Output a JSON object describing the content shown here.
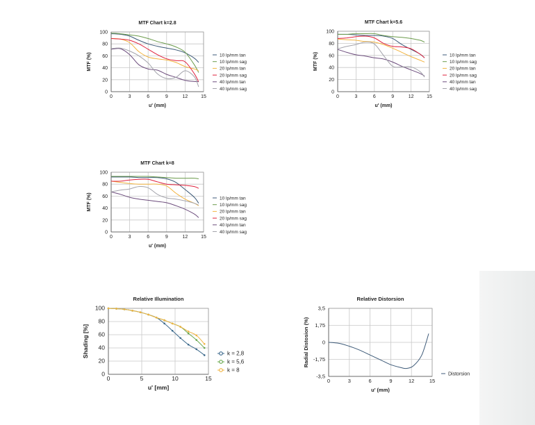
{
  "chart_data": [
    {
      "id": "mtf-k28",
      "type": "line",
      "title": "MTF Chart k=2.8",
      "xlabel": "u' (mm)",
      "ylabel": "MTF (%)",
      "xlim": [
        0,
        15
      ],
      "ylim": [
        0,
        100
      ],
      "xticks": [
        0,
        3,
        6,
        9,
        12,
        15
      ],
      "yticks": [
        0,
        20,
        40,
        60,
        80,
        100
      ],
      "grid": true,
      "legend": "right",
      "x": [
        0,
        1.5,
        3,
        4.5,
        6,
        7.5,
        9,
        10.5,
        12,
        13.5,
        14.2
      ],
      "series": [
        {
          "name": "10 lp/mm tan",
          "color": "#3d5a78",
          "values": [
            97,
            96,
            93,
            86,
            80,
            76,
            73,
            70,
            65,
            56,
            49
          ]
        },
        {
          "name": "10 lp/mm sag",
          "color": "#6b9b4b",
          "values": [
            98,
            97,
            95,
            93,
            89,
            84,
            80,
            75,
            66,
            45,
            32
          ]
        },
        {
          "name": "20 lp/mm tan",
          "color": "#f2b440",
          "values": [
            89,
            88,
            82,
            67,
            58,
            55,
            53,
            49,
            42,
            38,
            35
          ]
        },
        {
          "name": "20 lp/mm sag",
          "color": "#e0203c",
          "values": [
            89,
            88,
            86,
            80,
            71,
            62,
            55,
            52,
            50,
            30,
            16
          ]
        },
        {
          "name": "40 lp/mm tan",
          "color": "#6c4c7c",
          "values": [
            71,
            72,
            62,
            45,
            38,
            36,
            29,
            24,
            19,
            17,
            17
          ]
        },
        {
          "name": "40 lp/mm sag",
          "color": "#a3a3ab",
          "values": [
            72,
            73,
            68,
            60,
            48,
            30,
            22,
            24,
            35,
            25,
            8
          ]
        }
      ]
    },
    {
      "id": "mtf-k56",
      "type": "line",
      "title": "MTF Chart k=5.6",
      "xlabel": "u' (mm)",
      "ylabel": "MTF (%)",
      "xlim": [
        0,
        15
      ],
      "ylim": [
        0,
        100
      ],
      "xticks": [
        0,
        3,
        6,
        9,
        12,
        15
      ],
      "yticks": [
        0,
        20,
        40,
        60,
        80,
        100
      ],
      "grid": true,
      "legend": "right",
      "x": [
        0,
        1.5,
        3,
        4.5,
        6,
        7.5,
        9,
        10.5,
        12,
        13.5,
        14.2
      ],
      "series": [
        {
          "name": "10 lp/mm tan",
          "color": "#3d5a78",
          "values": [
            95,
            95,
            94,
            93,
            93,
            92,
            88,
            78,
            70,
            62,
            56
          ]
        },
        {
          "name": "10 lp/mm sag",
          "color": "#6b9b4b",
          "values": [
            95,
            95,
            96,
            96,
            96,
            93,
            91,
            90,
            88,
            85,
            82
          ]
        },
        {
          "name": "20 lp/mm tan",
          "color": "#f2b440",
          "values": [
            87,
            86,
            85,
            83,
            82,
            78,
            72,
            65,
            58,
            52,
            49
          ]
        },
        {
          "name": "20 lp/mm sag",
          "color": "#e0203c",
          "values": [
            88,
            89,
            91,
            92,
            89,
            80,
            75,
            74,
            71,
            62,
            56
          ]
        },
        {
          "name": "40 lp/mm tan",
          "color": "#6c4c7c",
          "values": [
            70,
            65,
            61,
            59,
            56,
            54,
            49,
            42,
            36,
            30,
            26
          ]
        },
        {
          "name": "40 lp/mm sag",
          "color": "#a3a3ab",
          "values": [
            71,
            75,
            78,
            82,
            79,
            60,
            42,
            41,
            41,
            33,
            24
          ]
        }
      ]
    },
    {
      "id": "mtf-k8",
      "type": "line",
      "title": "MTF Chart k=8",
      "xlabel": "u' (mm)",
      "ylabel": "MTF (%)",
      "xlim": [
        0,
        15
      ],
      "ylim": [
        0,
        100
      ],
      "xticks": [
        0,
        3,
        6,
        9,
        12,
        15
      ],
      "yticks": [
        0,
        20,
        40,
        60,
        80,
        100
      ],
      "grid": true,
      "legend": "right",
      "x": [
        0,
        1.5,
        3,
        4.5,
        6,
        7.5,
        9,
        10.5,
        12,
        13.5,
        14.2
      ],
      "series": [
        {
          "name": "10 lp/mm tan",
          "color": "#3d5a78",
          "values": [
            92,
            92,
            92,
            91,
            91,
            91,
            89,
            83,
            71,
            58,
            48
          ]
        },
        {
          "name": "10 lp/mm sag",
          "color": "#6b9b4b",
          "values": [
            93,
            93,
            93,
            93,
            93,
            92,
            91,
            90,
            90,
            90,
            89
          ]
        },
        {
          "name": "20 lp/mm tan",
          "color": "#f2b440",
          "values": [
            85,
            83,
            81,
            80,
            80,
            80,
            77,
            65,
            55,
            48,
            44
          ]
        },
        {
          "name": "20 lp/mm sag",
          "color": "#e0203c",
          "values": [
            85,
            85,
            87,
            88,
            88,
            84,
            80,
            79,
            78,
            76,
            73
          ]
        },
        {
          "name": "40 lp/mm tan",
          "color": "#6c4c7c",
          "values": [
            67,
            63,
            58,
            55,
            53,
            51,
            49,
            44,
            38,
            30,
            24
          ]
        },
        {
          "name": "40 lp/mm sag",
          "color": "#a3a3ab",
          "values": [
            67,
            70,
            72,
            76,
            74,
            63,
            57,
            55,
            52,
            48,
            45
          ]
        }
      ]
    },
    {
      "id": "relative-illumination",
      "type": "line",
      "title": "Relative Illumination",
      "xlabel": "u' [mm]",
      "ylabel": "Shading [%]",
      "xlim": [
        0,
        15
      ],
      "ylim": [
        0,
        100
      ],
      "xticks": [
        0,
        5,
        10,
        15
      ],
      "yticks": [
        0,
        20,
        40,
        60,
        80,
        100
      ],
      "grid": true,
      "legend": "right",
      "markers": true,
      "x": [
        0,
        1.2,
        2.4,
        3.6,
        4.8,
        6,
        7.2,
        8.4,
        9.6,
        10.8,
        12,
        13.2,
        14.4
      ],
      "series": [
        {
          "name": "k = 2,8",
          "color": "#3d6a8c",
          "values": [
            100,
            99.5,
            98.5,
            96.5,
            94,
            90.5,
            86,
            77,
            66,
            55,
            45,
            38,
            29
          ]
        },
        {
          "name": "k = 5,6",
          "color": "#6aa84f",
          "values": [
            100,
            99.5,
            98.5,
            96.5,
            94,
            90.5,
            86,
            82,
            77,
            72,
            62,
            52,
            40
          ]
        },
        {
          "name": "k = 8",
          "color": "#f0b443",
          "values": [
            100,
            99.5,
            98.5,
            96.5,
            94,
            90.5,
            86,
            82,
            77,
            72,
            65,
            59,
            46
          ]
        }
      ]
    },
    {
      "id": "relative-distortion",
      "type": "line",
      "title": "Relative Distorsion",
      "xlabel": "u' (mm)",
      "ylabel": "Radial Distosion (%)",
      "xlim": [
        0,
        15
      ],
      "ylim": [
        -3.5,
        3.5
      ],
      "xticks": [
        0,
        3,
        6,
        9,
        12,
        15
      ],
      "yticks": [
        -3.5,
        -1.75,
        0,
        1.75,
        3.5
      ],
      "ytick_labels": [
        "-3,5",
        "-1,75",
        "0",
        "1,75",
        "3,5"
      ],
      "grid": true,
      "legend": "right",
      "x": [
        0,
        1.5,
        3,
        4.5,
        6,
        7.5,
        9,
        10.5,
        11.3,
        12.3,
        13.5,
        14.5
      ],
      "series": [
        {
          "name": "Distorsion",
          "color": "#3d5a78",
          "values": [
            0,
            -0.1,
            -0.4,
            -0.8,
            -1.3,
            -1.8,
            -2.3,
            -2.6,
            -2.68,
            -2.4,
            -1.3,
            0.9
          ]
        }
      ]
    }
  ]
}
